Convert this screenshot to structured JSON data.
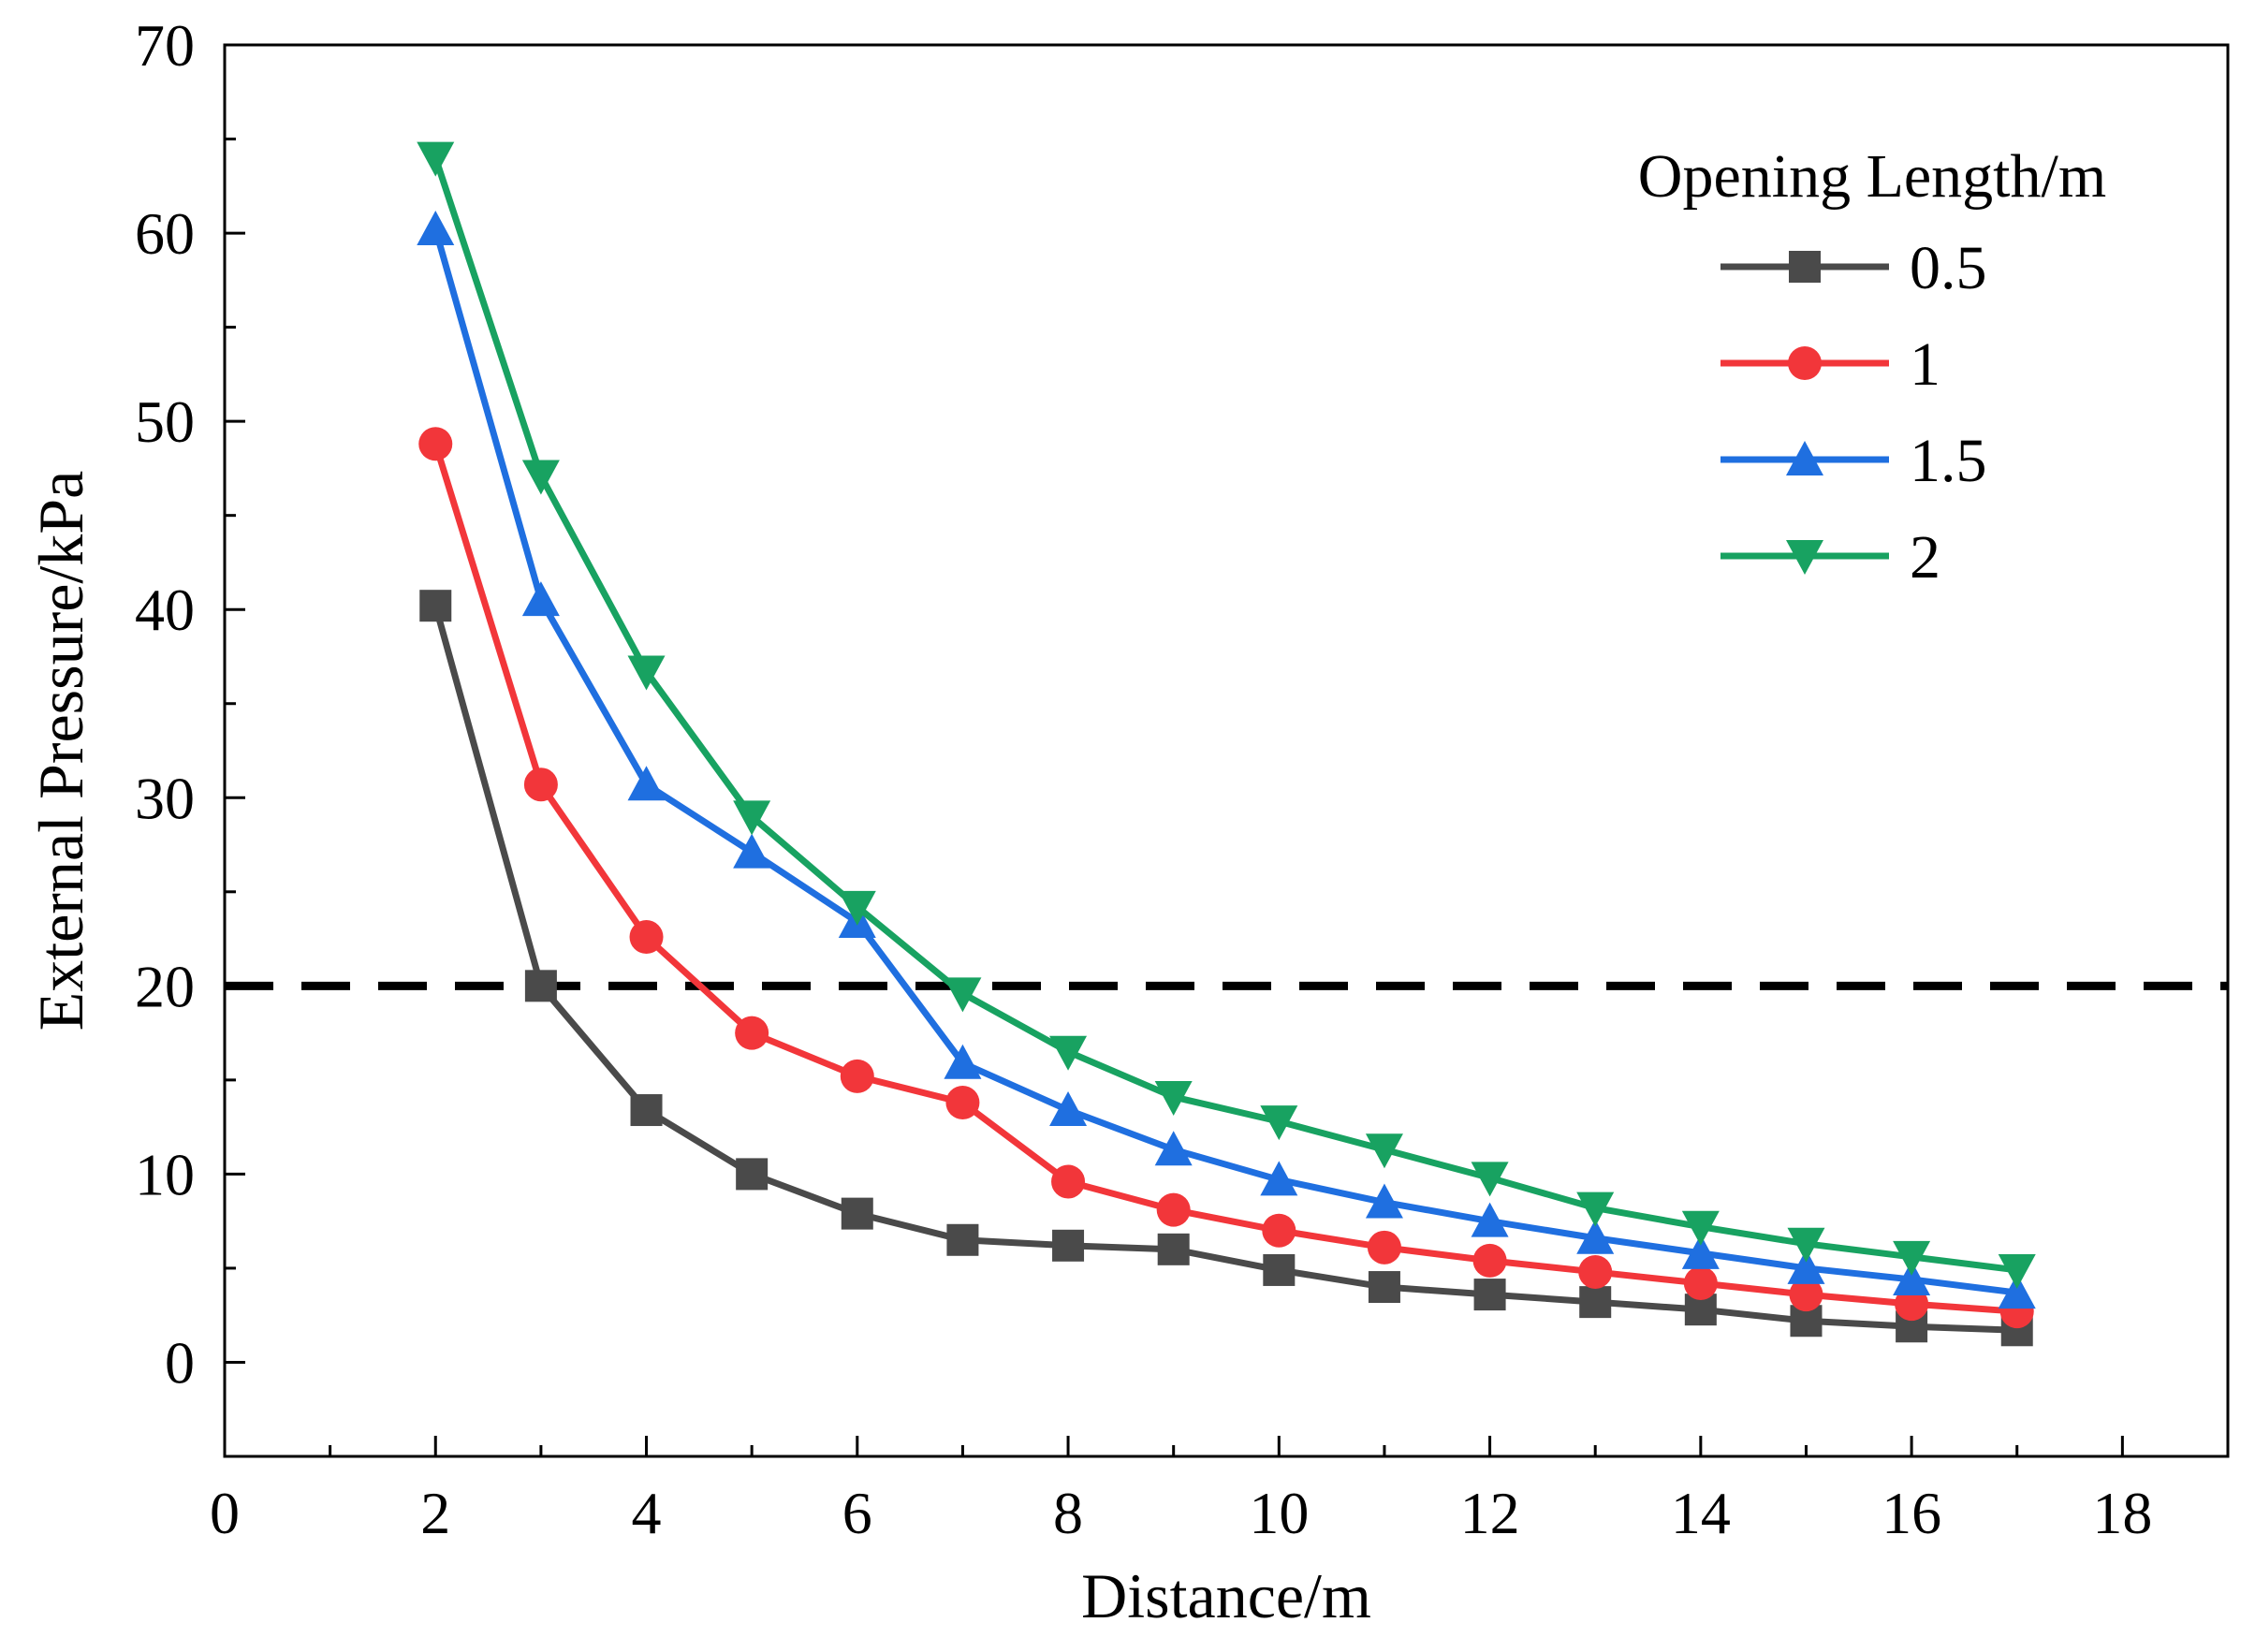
{
  "chart_data": {
    "type": "line",
    "title": "",
    "xlabel": "Distance/m",
    "ylabel": "External Pressure/kPa",
    "xlim": [
      0,
      19
    ],
    "ylim": [
      -5,
      70
    ],
    "xticks": [
      0,
      2,
      4,
      6,
      8,
      10,
      12,
      14,
      16,
      18
    ],
    "yticks": [
      0,
      10,
      20,
      30,
      40,
      50,
      60,
      70
    ],
    "x": [
      2,
      3,
      4,
      5,
      6,
      7,
      8,
      9,
      10,
      11,
      12,
      13,
      14,
      15,
      16,
      17
    ],
    "reference_line": {
      "y": 20,
      "style": "dashed",
      "color": "#000000"
    },
    "legend": {
      "title": "Opening Length/m",
      "position": "top-right"
    },
    "series": [
      {
        "name": "0.5",
        "color": "#4a4a4a",
        "marker": "square",
        "values": [
          40.2,
          20.0,
          13.4,
          10.0,
          7.9,
          6.5,
          6.2,
          6.0,
          4.9,
          4.0,
          3.6,
          3.2,
          2.8,
          2.2,
          1.9,
          1.7
        ]
      },
      {
        "name": "1",
        "color": "#f2363a",
        "marker": "circle",
        "values": [
          48.8,
          30.7,
          22.6,
          17.5,
          15.2,
          13.8,
          9.6,
          8.1,
          7.0,
          6.1,
          5.4,
          4.8,
          4.2,
          3.6,
          3.1,
          2.7
        ]
      },
      {
        "name": "1.5",
        "color": "#1f6fe0",
        "marker": "triangle-up",
        "values": [
          60.2,
          40.5,
          30.7,
          27.1,
          23.4,
          15.9,
          13.4,
          11.3,
          9.7,
          8.5,
          7.5,
          6.6,
          5.8,
          5.0,
          4.4,
          3.7
        ]
      },
      {
        "name": "2",
        "color": "#18a261",
        "marker": "triangle-down",
        "values": [
          64.0,
          47.1,
          36.7,
          29.0,
          24.2,
          19.6,
          16.5,
          14.1,
          12.8,
          11.3,
          9.8,
          8.2,
          7.2,
          6.3,
          5.6,
          4.9
        ]
      }
    ]
  }
}
